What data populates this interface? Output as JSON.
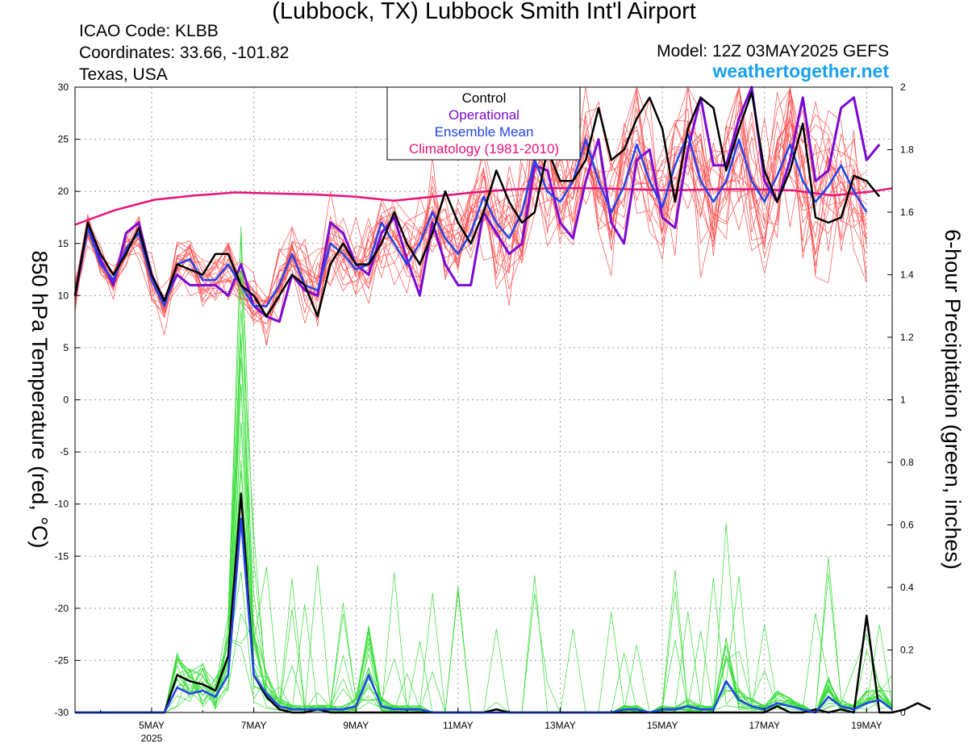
{
  "header": {
    "title": "(Lubbock, TX) Lubbock Smith Int'l Airport",
    "icao": "ICAO Code: KLBB",
    "coords": "Coordinates: 33.66, -101.82",
    "region": "Texas, USA",
    "model": "Model: 12Z 03MAY2025 GEFS",
    "site": "weathertogether.net"
  },
  "colors": {
    "control": "#000000",
    "operational": "#7a0ad6",
    "mean": "#2244ee",
    "climatology": "#e8137a",
    "members_temp": "#ff5050",
    "members_precip": "#33dd33"
  },
  "chart_data": {
    "type": "line",
    "title": "(Lubbock, TX) Lubbock Smith Int'l Airport",
    "ylabel": "850 hPa Temperature (red, °C)",
    "y2label": "6-hour Precipitation (green, inches)",
    "ylim": [
      -30,
      30
    ],
    "y2lim": [
      0,
      2
    ],
    "yticks": [
      "30",
      "25",
      "20",
      "15",
      "10",
      "5",
      "0",
      "-5",
      "-10",
      "-15",
      "-20",
      "-25",
      "-30"
    ],
    "y2ticks": [
      "2",
      "1.8",
      "1.6",
      "1.4",
      "1.2",
      "1",
      "0.8",
      "0.6",
      "0.4",
      "0.2",
      "0"
    ],
    "xticks": [
      {
        "day": 5,
        "label": "5MAY",
        "sub": "2025"
      },
      {
        "day": 7,
        "label": "7MAY",
        "sub": ""
      },
      {
        "day": 9,
        "label": "9MAY",
        "sub": ""
      },
      {
        "day": 11,
        "label": "11MAY",
        "sub": ""
      },
      {
        "day": 13,
        "label": "13MAY",
        "sub": ""
      },
      {
        "day": 15,
        "label": "15MAY",
        "sub": ""
      },
      {
        "day": 17,
        "label": "17MAY",
        "sub": ""
      },
      {
        "day": 19,
        "label": "19MAY",
        "sub": ""
      }
    ],
    "x_start": "03MAY2025 12Z",
    "x_step_hours": 6,
    "grid": true,
    "legend": [
      "Control",
      "Operational",
      "Ensemble Mean",
      "Climatology (1981-2010)"
    ],
    "temperature": {
      "control": [
        10,
        17,
        14,
        12,
        14,
        16.5,
        12,
        9.5,
        13,
        12.5,
        12,
        14,
        14,
        11,
        10,
        8,
        10,
        12,
        11,
        8,
        13,
        15,
        13,
        13,
        15,
        18,
        15,
        13,
        16,
        20,
        17,
        15,
        18,
        22,
        19,
        17,
        18,
        24,
        21,
        21,
        23,
        28,
        23,
        24,
        27,
        29,
        26,
        19,
        26,
        29,
        28,
        22,
        26,
        29.5,
        22,
        19,
        22,
        26.5,
        17.5,
        17,
        17.5,
        21.5,
        21,
        19.5
      ],
      "operational": [
        10,
        16.5,
        13.5,
        11,
        16,
        17,
        12,
        9.5,
        12,
        11,
        11,
        11,
        10,
        13,
        9,
        8,
        7.5,
        12,
        10.5,
        10,
        17,
        16,
        13,
        12,
        16,
        17.5,
        13.5,
        10,
        17,
        13,
        11,
        11,
        18,
        16,
        14,
        15,
        22.5,
        22,
        17,
        15.5,
        21,
        25,
        17,
        15,
        23,
        24,
        17.5,
        16.5,
        24,
        29,
        22.5,
        22.5,
        27,
        30,
        21,
        19,
        23,
        29,
        21,
        22,
        28,
        29,
        23,
        24.5
      ],
      "mean": [
        10,
        16.5,
        13,
        11.5,
        14.5,
        16,
        11.5,
        9,
        13,
        13.5,
        11.5,
        11.5,
        13,
        11,
        9,
        9,
        11,
        14,
        11,
        10.5,
        15,
        14,
        12.5,
        13,
        17,
        15,
        13,
        15,
        18,
        15.5,
        14,
        16,
        19.5,
        17,
        15.5,
        18,
        23,
        20,
        19,
        21,
        25,
        21,
        18,
        20.5,
        24.5,
        21,
        18.5,
        22.5,
        25.5,
        21,
        19,
        21,
        25,
        21,
        19,
        21.5,
        24.5,
        21,
        19,
        20.5,
        22.5,
        20,
        18
      ],
      "climatology": [
        [
          0,
          16.8
        ],
        [
          4,
          18.2
        ],
        [
          8,
          19.2
        ],
        [
          12,
          19.6
        ],
        [
          16,
          19.9
        ],
        [
          20,
          19.8
        ],
        [
          24,
          19.7
        ],
        [
          28,
          19.5
        ],
        [
          32,
          19.1
        ],
        [
          36,
          19.5
        ],
        [
          40,
          19.9
        ],
        [
          44,
          20.2
        ],
        [
          48,
          20.3
        ],
        [
          52,
          20.3
        ],
        [
          56,
          20.2
        ],
        [
          60,
          20.1
        ],
        [
          64,
          20.2
        ],
        [
          68,
          20.2
        ],
        [
          72,
          20.1
        ],
        [
          76,
          19.6
        ],
        [
          80,
          20.0
        ],
        [
          82,
          20.3
        ]
      ]
    },
    "precipitation": {
      "control": [
        0,
        0,
        0,
        0,
        0,
        0,
        0,
        0,
        0.12,
        0.1,
        0.09,
        0.07,
        0.18,
        0.7,
        0.12,
        0.05,
        0.01,
        0,
        0,
        0.01,
        0,
        0,
        0,
        0,
        0,
        0,
        0,
        0,
        0,
        0,
        0,
        0,
        0,
        0.01,
        0,
        0,
        0,
        0,
        0,
        0,
        0,
        0,
        0,
        0,
        0,
        0,
        0,
        0,
        0,
        0,
        0,
        0,
        0,
        0,
        0,
        0.02,
        0,
        0,
        0.01,
        0,
        0.01,
        0,
        0.31,
        0,
        0,
        0.01,
        0.03,
        0.01
      ],
      "mean": [
        0,
        0,
        0,
        0,
        0,
        0,
        0,
        0,
        0.08,
        0.06,
        0.07,
        0.05,
        0.12,
        0.62,
        0.12,
        0.06,
        0.02,
        0.01,
        0.01,
        0.01,
        0.01,
        0.01,
        0.02,
        0.12,
        0.02,
        0.01,
        0.01,
        0.01,
        0,
        0,
        0,
        0,
        0,
        0,
        0,
        0,
        0,
        0,
        0,
        0,
        0,
        0,
        0,
        0.01,
        0.01,
        0,
        0.01,
        0.01,
        0.02,
        0.01,
        0.01,
        0.1,
        0.04,
        0.02,
        0.01,
        0.03,
        0.02,
        0.01,
        0,
        0.05,
        0.02,
        0.01,
        0.03,
        0.04,
        0.01
      ]
    }
  }
}
